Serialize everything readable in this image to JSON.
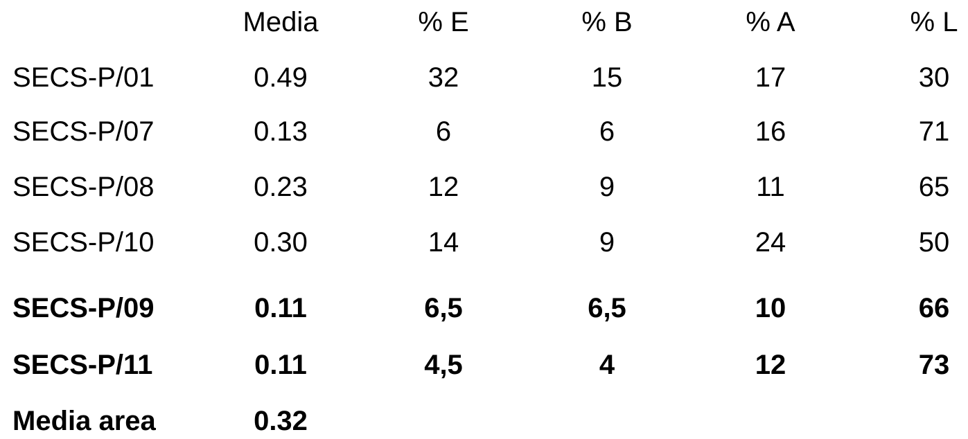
{
  "table": {
    "header": [
      "Media",
      "% E",
      "% B",
      "% A",
      "% L"
    ],
    "rows": [
      [
        "SECS-P/01",
        "0.49",
        "32",
        "15",
        "17",
        "30"
      ],
      [
        "SECS-P/07",
        "0.13",
        "6",
        "6",
        "16",
        "71"
      ],
      [
        "SECS-P/08",
        "0.23",
        "12",
        "9",
        "11",
        "65"
      ],
      [
        "SECS-P/10",
        "0.30",
        "14",
        "9",
        "24",
        "50"
      ],
      [
        "SECS-P/09",
        "0.11",
        "6,5",
        "6,5",
        "10",
        "66"
      ],
      [
        "SECS-P/11",
        "0.11",
        "4,5",
        "4",
        "12",
        "73"
      ],
      [
        "Media area",
        "0.32"
      ]
    ]
  }
}
